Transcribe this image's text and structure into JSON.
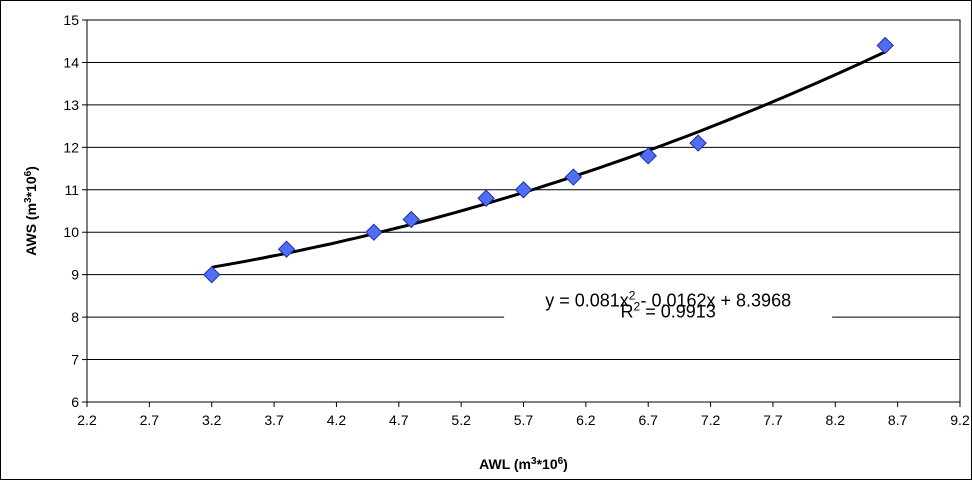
{
  "chart_data": {
    "type": "scatter",
    "xlabel": {
      "base": "AWL (m",
      "sup1": "3",
      "mid": "*10",
      "sup2": "6",
      "end": ")"
    },
    "ylabel": {
      "base": "AWS (m",
      "sup1": "3",
      "mid": "*10",
      "sup2": "6",
      "end": ")"
    },
    "xlim": [
      2.2,
      9.2
    ],
    "ylim": [
      6,
      15
    ],
    "x_ticks": [
      "2.2",
      "2.7",
      "3.2",
      "3.7",
      "4.2",
      "4.7",
      "5.2",
      "5.7",
      "6.2",
      "6.7",
      "7.2",
      "7.7",
      "8.2",
      "8.7",
      "9.2"
    ],
    "y_ticks": [
      "6",
      "7",
      "8",
      "9",
      "10",
      "11",
      "12",
      "13",
      "14",
      "15"
    ],
    "grid": "horizontal",
    "legend": "none",
    "marker_color": "#4F6DF5",
    "marker_edge_color": "#1F2F9F",
    "trend_color": "#000000",
    "points": [
      {
        "x": 3.2,
        "y": 9.0
      },
      {
        "x": 3.8,
        "y": 9.6
      },
      {
        "x": 4.5,
        "y": 10.0
      },
      {
        "x": 4.8,
        "y": 10.3
      },
      {
        "x": 5.4,
        "y": 10.8
      },
      {
        "x": 5.7,
        "y": 11.0
      },
      {
        "x": 6.1,
        "y": 11.3
      },
      {
        "x": 6.7,
        "y": 11.8
      },
      {
        "x": 7.1,
        "y": 12.1
      },
      {
        "x": 8.6,
        "y": 14.4
      }
    ],
    "trendline": {
      "type": "polynomial",
      "coefficients": [
        0.081,
        -0.0162,
        8.3968
      ],
      "x_range": [
        3.2,
        8.6
      ],
      "equation": {
        "prefix": "y = 0.081x",
        "exp": "2",
        "suffix": " - 0.0162x + 8.3968"
      },
      "r2": {
        "prefix": "R",
        "exp": "2",
        "suffix": " = 0.9913"
      }
    }
  }
}
